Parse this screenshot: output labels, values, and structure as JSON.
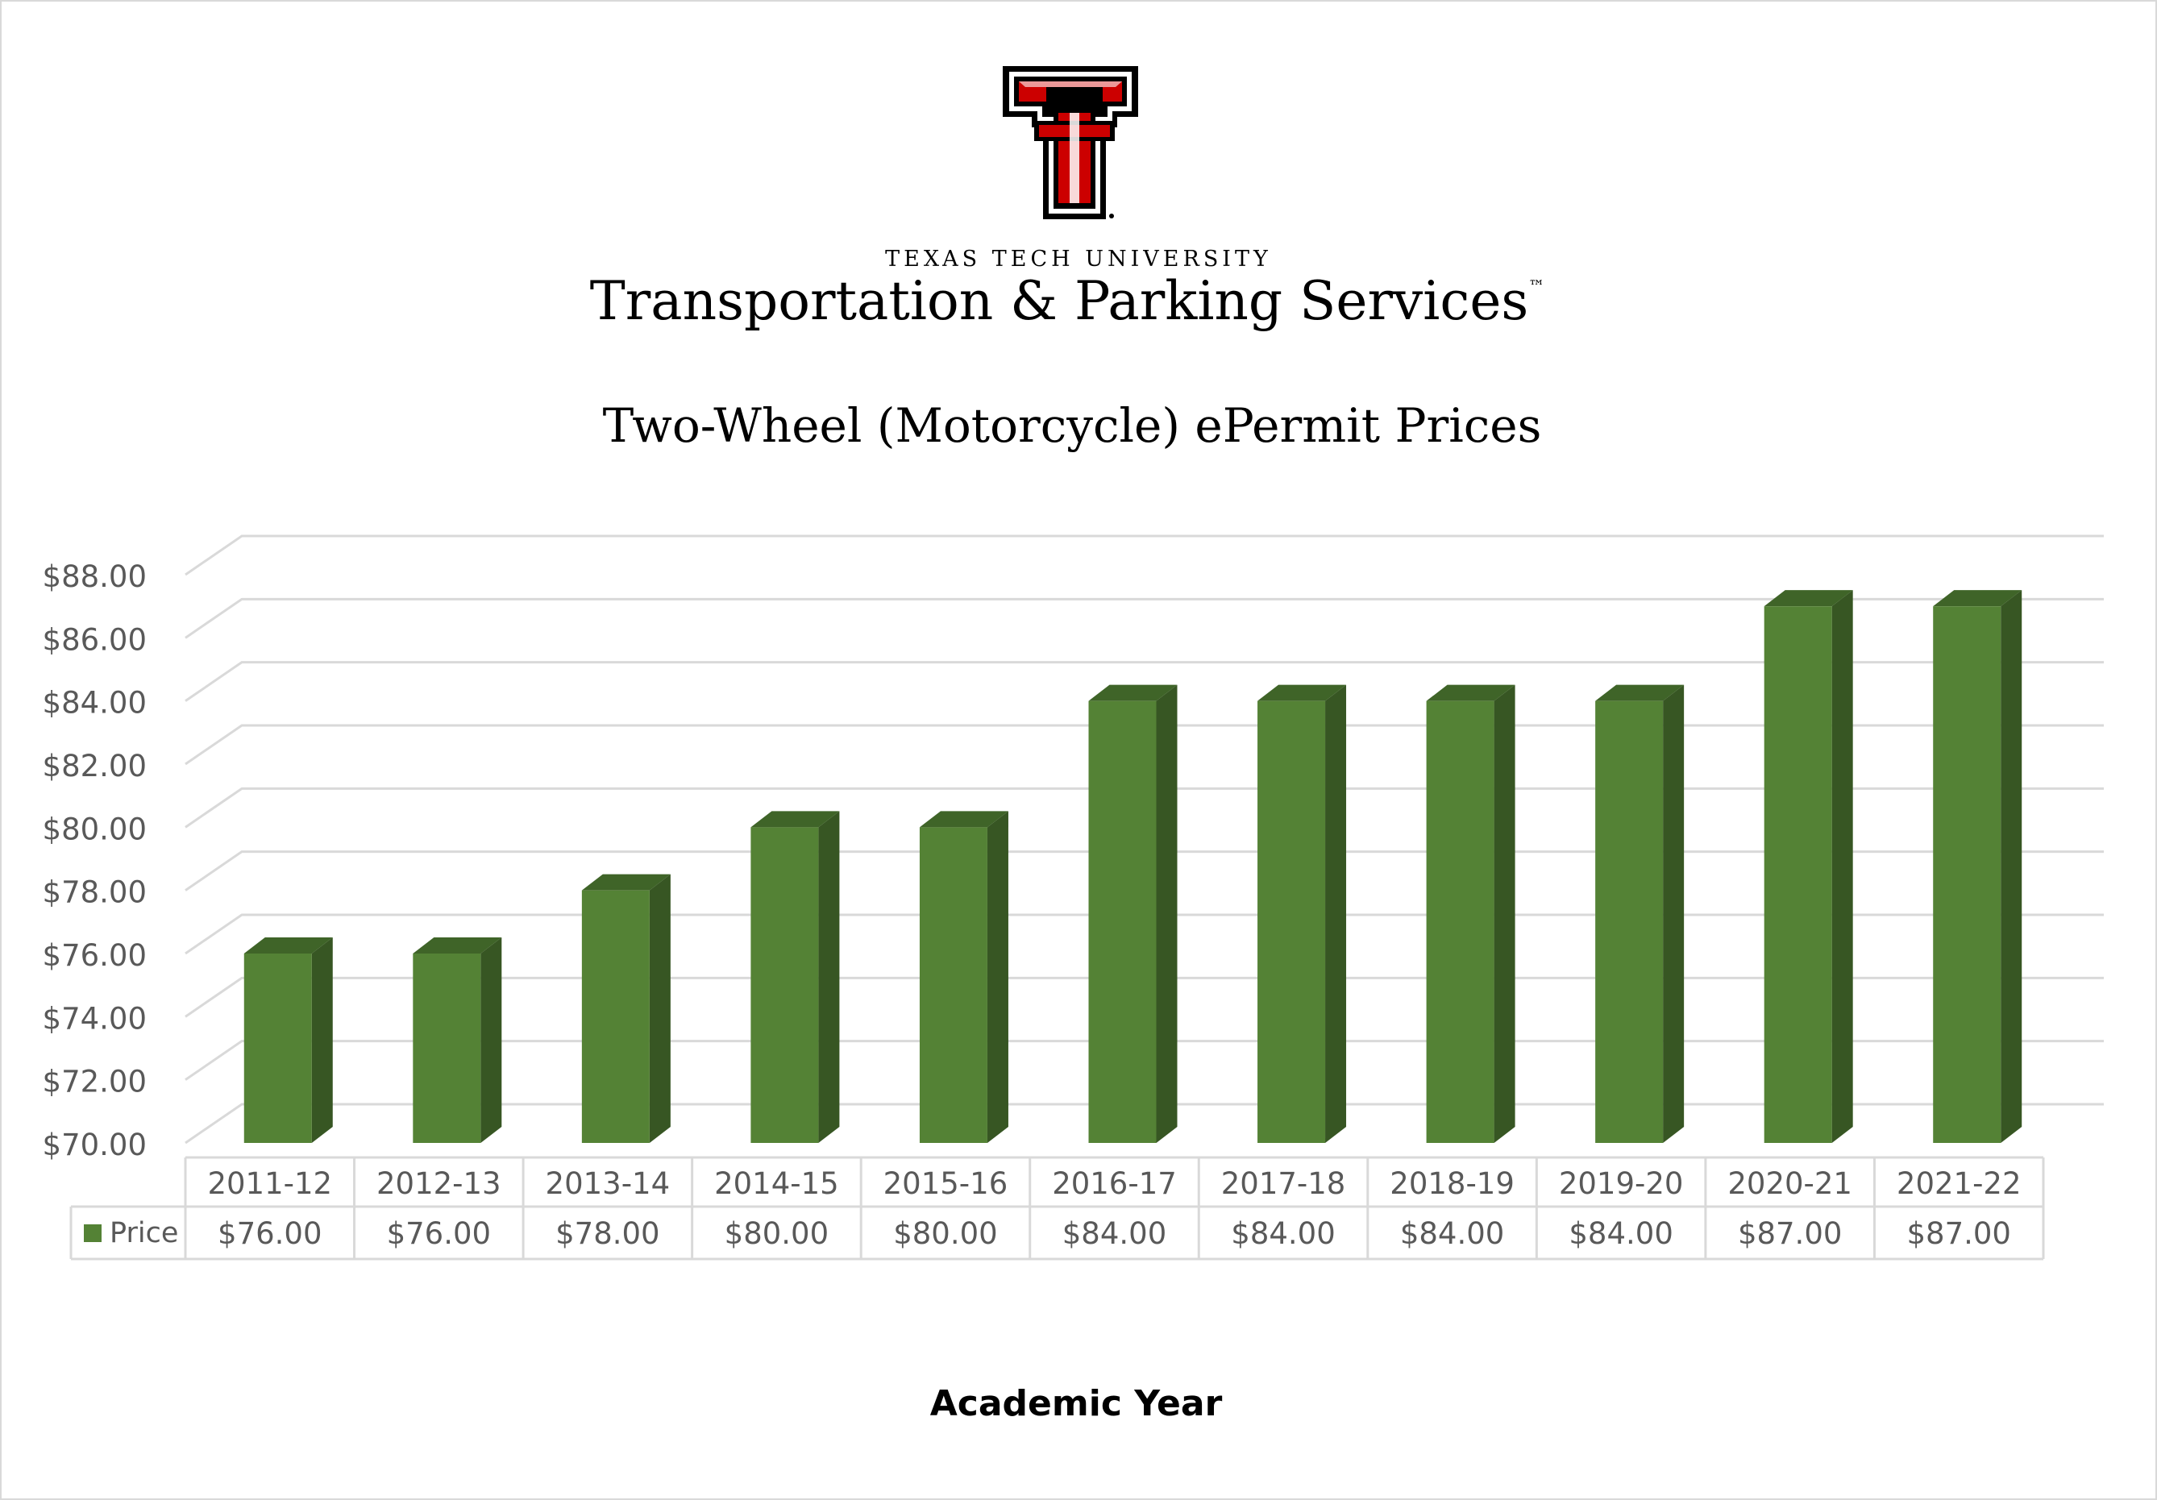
{
  "header": {
    "university": "TEXAS TECH UNIVERSITY",
    "department": "Transportation & Parking Services",
    "trademark": "™"
  },
  "chart_data": {
    "type": "bar",
    "title": "Two-Wheel (Motorcycle) ePermit Prices",
    "xlabel": "Academic Year",
    "ylabel": "",
    "categories": [
      "2011-12",
      "2012-13",
      "2013-14",
      "2014-15",
      "2015-16",
      "2016-17",
      "2017-18",
      "2018-19",
      "2019-20",
      "2020-21",
      "2021-22"
    ],
    "series": [
      {
        "name": "Price",
        "values": [
          76,
          76,
          78,
          80,
          80,
          84,
          84,
          84,
          84,
          87,
          87
        ],
        "labels": [
          "$76.00",
          "$76.00",
          "$78.00",
          "$80.00",
          "$80.00",
          "$84.00",
          "$84.00",
          "$84.00",
          "$84.00",
          "$87.00",
          "$87.00"
        ]
      }
    ],
    "ylim": [
      70,
      88
    ],
    "yticks": [
      "$70.00",
      "$72.00",
      "$74.00",
      "$76.00",
      "$78.00",
      "$80.00",
      "$82.00",
      "$84.00",
      "$86.00",
      "$88.00"
    ],
    "grid": true,
    "data_table": true,
    "colors": {
      "bar_front": "#548235",
      "bar_side": "#375623",
      "bar_top": "#3f6428",
      "grid": "#d9d9d9"
    }
  }
}
